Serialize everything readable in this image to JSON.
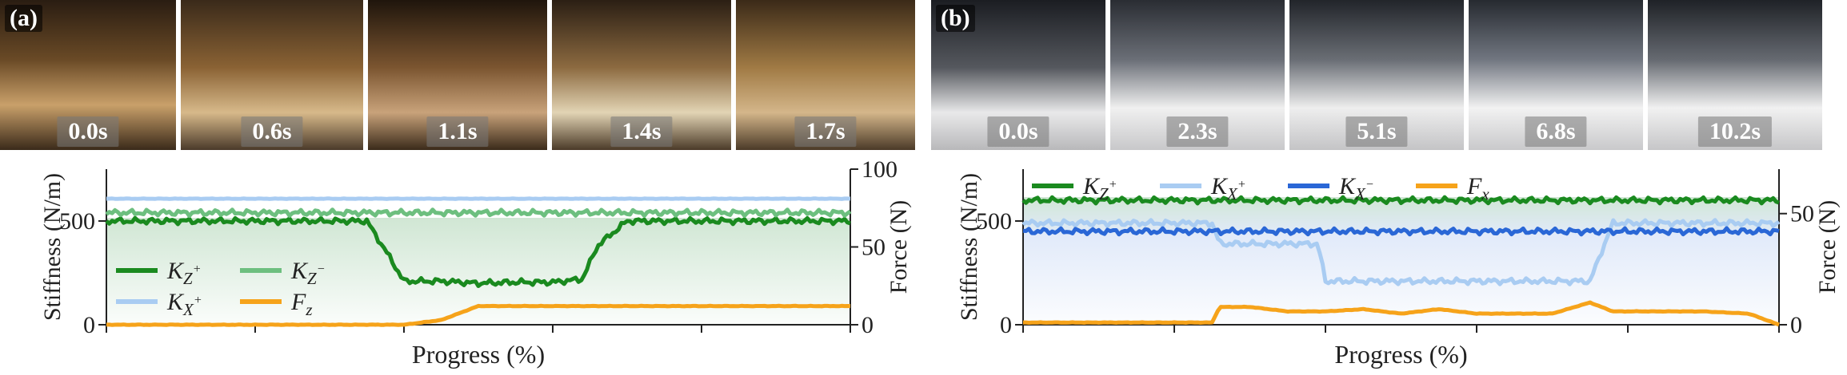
{
  "panel_a": {
    "label": "(a)",
    "frames": [
      "0.0s",
      "0.6s",
      "1.1s",
      "1.4s",
      "1.7s"
    ]
  },
  "panel_b": {
    "label": "(b)",
    "frames": [
      "0.0s",
      "2.3s",
      "5.1s",
      "6.8s",
      "10.2s"
    ]
  },
  "colors": {
    "kz_plus": "#1a8a1f",
    "kz_minus": "#6dbf7f",
    "kx_plus": "#a9ccf2",
    "kx_minus": "#2a67d6",
    "force": "#f6a31a"
  },
  "chart_data": [
    {
      "type": "line",
      "xlabel": "Progress (%)",
      "ylabel": "Stiffness (N/m)",
      "y2label": "Force (N)",
      "x": [
        0,
        10,
        20,
        30,
        35,
        38,
        40,
        45,
        50,
        55,
        60,
        64,
        66,
        70,
        80,
        90,
        100
      ],
      "ylim": [
        0,
        750
      ],
      "y2lim": [
        0,
        100
      ],
      "yticks": [
        0,
        500
      ],
      "y2ticks": [
        0,
        50,
        100
      ],
      "legend_position": "lower-left",
      "series": [
        {
          "name": "K_Z+",
          "axis": "left",
          "values": [
            500,
            500,
            500,
            500,
            500,
            330,
            210,
            210,
            200,
            205,
            205,
            220,
            380,
            500,
            500,
            500,
            500
          ]
        },
        {
          "name": "K_Z-",
          "axis": "left",
          "values": [
            540,
            540,
            540,
            540,
            540,
            540,
            540,
            540,
            540,
            540,
            540,
            540,
            540,
            540,
            540,
            540,
            540
          ]
        },
        {
          "name": "K_X+",
          "axis": "right",
          "values": [
            81,
            81,
            81,
            81,
            81,
            81,
            81,
            81,
            81,
            81,
            81,
            81,
            81,
            81,
            81,
            81,
            81
          ]
        },
        {
          "name": "F_z",
          "axis": "right",
          "values": [
            0,
            0,
            0,
            0,
            0,
            0,
            0,
            3,
            12,
            12,
            12,
            12,
            12,
            12,
            12,
            12,
            12
          ]
        }
      ]
    },
    {
      "type": "line",
      "xlabel": "Progress (%)",
      "ylabel": "Stiffness (N/m)",
      "y2label": "Force (N)",
      "x": [
        0,
        10,
        20,
        25,
        26,
        30,
        35,
        39,
        40,
        45,
        50,
        55,
        60,
        65,
        70,
        75,
        78,
        80,
        90,
        96,
        100
      ],
      "ylim": [
        0,
        750
      ],
      "y2lim": [
        0,
        70
      ],
      "yticks": [
        0,
        500
      ],
      "y2ticks": [
        0,
        50
      ],
      "legend_position": "top",
      "series": [
        {
          "name": "K_Z+",
          "axis": "left",
          "values": [
            600,
            600,
            600,
            600,
            600,
            600,
            600,
            600,
            600,
            600,
            600,
            600,
            600,
            600,
            600,
            600,
            600,
            600,
            600,
            600,
            600
          ]
        },
        {
          "name": "K_X+",
          "axis": "left",
          "values": [
            490,
            490,
            490,
            490,
            390,
            390,
            390,
            390,
            210,
            210,
            210,
            210,
            210,
            210,
            210,
            210,
            490,
            490,
            490,
            490,
            490
          ]
        },
        {
          "name": "K_X-",
          "axis": "left",
          "values": [
            450,
            450,
            450,
            450,
            450,
            450,
            450,
            450,
            450,
            450,
            450,
            450,
            450,
            450,
            450,
            450,
            450,
            450,
            450,
            450,
            450
          ]
        },
        {
          "name": "F_x",
          "axis": "right",
          "values": [
            1,
            1,
            1,
            1,
            8,
            8,
            6,
            6,
            6,
            7,
            5,
            7,
            5,
            5,
            5,
            10,
            6,
            6,
            6,
            5,
            0
          ]
        }
      ]
    }
  ]
}
